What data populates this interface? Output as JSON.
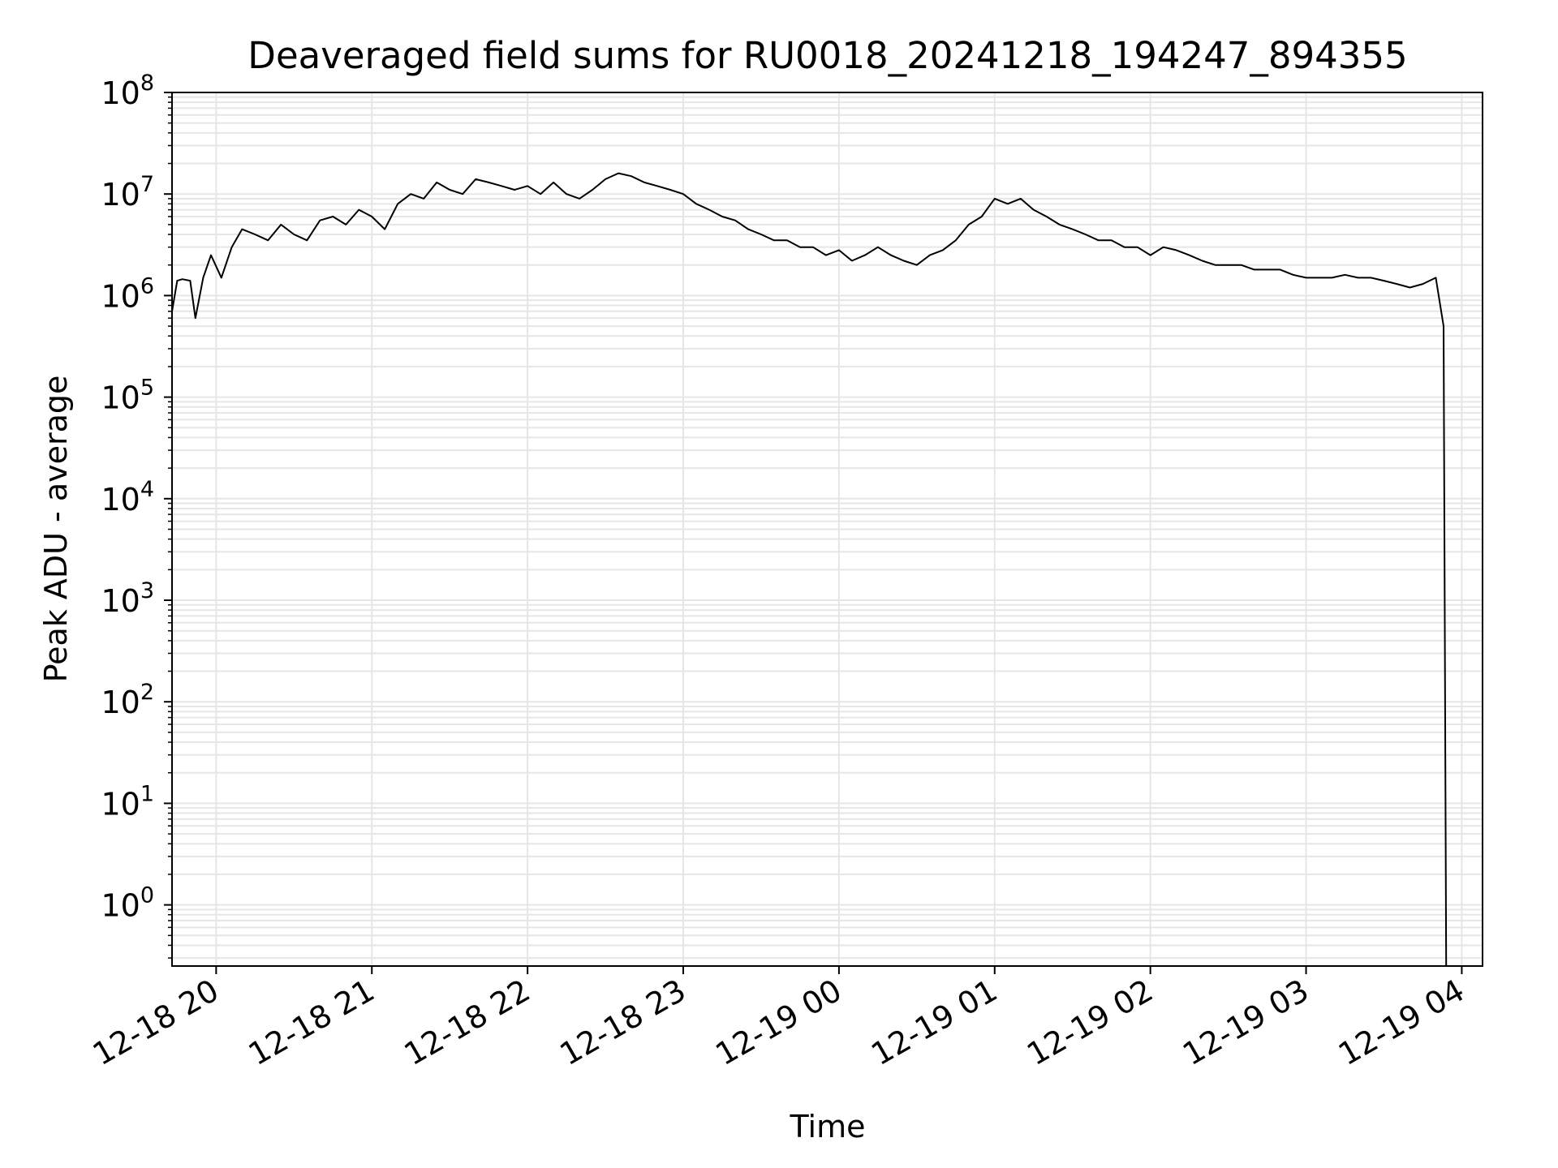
{
  "chart_data": {
    "type": "line",
    "title": "Deaveraged field sums for RU0018_20241218_194247_894355",
    "xlabel": "Time",
    "ylabel": "Peak ADU - average",
    "yscale": "log",
    "xlim": [
      "2024-12-18 19:43",
      "2024-12-19 04:08"
    ],
    "ylim": [
      0.25,
      100000000
    ],
    "x_ticks": [
      {
        "t": "2024-12-18 20:00",
        "label": "12-18 20"
      },
      {
        "t": "2024-12-18 21:00",
        "label": "12-18 21"
      },
      {
        "t": "2024-12-18 22:00",
        "label": "12-18 22"
      },
      {
        "t": "2024-12-18 23:00",
        "label": "12-18 23"
      },
      {
        "t": "2024-12-19 00:00",
        "label": "12-19 00"
      },
      {
        "t": "2024-12-19 01:00",
        "label": "12-19 01"
      },
      {
        "t": "2024-12-19 02:00",
        "label": "12-19 02"
      },
      {
        "t": "2024-12-19 03:00",
        "label": "12-19 03"
      },
      {
        "t": "2024-12-19 04:00",
        "label": "12-19 04"
      }
    ],
    "y_ticks": [
      {
        "value": 1,
        "base": "10",
        "exp": "0"
      },
      {
        "value": 10,
        "base": "10",
        "exp": "1"
      },
      {
        "value": 100,
        "base": "10",
        "exp": "2"
      },
      {
        "value": 1000,
        "base": "10",
        "exp": "3"
      },
      {
        "value": 10000,
        "base": "10",
        "exp": "4"
      },
      {
        "value": 100000,
        "base": "10",
        "exp": "5"
      },
      {
        "value": 1000000,
        "base": "10",
        "exp": "6"
      },
      {
        "value": 10000000,
        "base": "10",
        "exp": "7"
      },
      {
        "value": 100000000,
        "base": "10",
        "exp": "8"
      }
    ],
    "grid": true,
    "line_color": "#000000",
    "grid_color": "#e6e6e6",
    "series": [
      {
        "x": [
          "2024-12-18 19:43",
          "2024-12-18 19:45",
          "2024-12-18 19:47",
          "2024-12-18 19:50",
          "2024-12-18 19:52",
          "2024-12-18 19:55",
          "2024-12-18 19:58",
          "2024-12-18 20:02",
          "2024-12-18 20:06",
          "2024-12-18 20:10",
          "2024-12-18 20:15",
          "2024-12-18 20:20",
          "2024-12-18 20:25",
          "2024-12-18 20:30",
          "2024-12-18 20:35",
          "2024-12-18 20:40",
          "2024-12-18 20:45",
          "2024-12-18 20:50",
          "2024-12-18 20:55",
          "2024-12-18 21:00",
          "2024-12-18 21:05",
          "2024-12-18 21:10",
          "2024-12-18 21:15",
          "2024-12-18 21:20",
          "2024-12-18 21:25",
          "2024-12-18 21:30",
          "2024-12-18 21:35",
          "2024-12-18 21:40",
          "2024-12-18 21:45",
          "2024-12-18 21:50",
          "2024-12-18 21:55",
          "2024-12-18 22:00",
          "2024-12-18 22:05",
          "2024-12-18 22:10",
          "2024-12-18 22:15",
          "2024-12-18 22:20",
          "2024-12-18 22:25",
          "2024-12-18 22:30",
          "2024-12-18 22:35",
          "2024-12-18 22:40",
          "2024-12-18 22:45",
          "2024-12-18 22:50",
          "2024-12-18 22:55",
          "2024-12-18 23:00",
          "2024-12-18 23:05",
          "2024-12-18 23:10",
          "2024-12-18 23:15",
          "2024-12-18 23:20",
          "2024-12-18 23:25",
          "2024-12-18 23:30",
          "2024-12-18 23:35",
          "2024-12-18 23:40",
          "2024-12-18 23:45",
          "2024-12-18 23:50",
          "2024-12-18 23:55",
          "2024-12-19 00:00",
          "2024-12-19 00:05",
          "2024-12-19 00:10",
          "2024-12-19 00:15",
          "2024-12-19 00:20",
          "2024-12-19 00:25",
          "2024-12-19 00:30",
          "2024-12-19 00:35",
          "2024-12-19 00:40",
          "2024-12-19 00:45",
          "2024-12-19 00:50",
          "2024-12-19 00:55",
          "2024-12-19 01:00",
          "2024-12-19 01:05",
          "2024-12-19 01:10",
          "2024-12-19 01:15",
          "2024-12-19 01:20",
          "2024-12-19 01:25",
          "2024-12-19 01:30",
          "2024-12-19 01:35",
          "2024-12-19 01:40",
          "2024-12-19 01:45",
          "2024-12-19 01:50",
          "2024-12-19 01:55",
          "2024-12-19 02:00",
          "2024-12-19 02:05",
          "2024-12-19 02:10",
          "2024-12-19 02:15",
          "2024-12-19 02:20",
          "2024-12-19 02:25",
          "2024-12-19 02:30",
          "2024-12-19 02:35",
          "2024-12-19 02:40",
          "2024-12-19 02:45",
          "2024-12-19 02:50",
          "2024-12-19 02:55",
          "2024-12-19 03:00",
          "2024-12-19 03:05",
          "2024-12-19 03:10",
          "2024-12-19 03:15",
          "2024-12-19 03:20",
          "2024-12-19 03:25",
          "2024-12-19 03:30",
          "2024-12-19 03:35",
          "2024-12-19 03:40",
          "2024-12-19 03:45",
          "2024-12-19 03:50",
          "2024-12-19 03:53",
          "2024-12-19 03:54"
        ],
        "y": [
          700000,
          1400000,
          1450000,
          1400000,
          600000,
          1500000,
          2500000,
          1500000,
          3000000,
          4500000,
          4000000,
          3500000,
          5000000,
          4000000,
          3500000,
          5500000,
          6000000,
          5000000,
          7000000,
          6000000,
          4500000,
          8000000,
          10000000,
          9000000,
          13000000,
          11000000,
          10000000,
          14000000,
          13000000,
          12000000,
          11000000,
          12000000,
          10000000,
          13000000,
          10000000,
          9000000,
          11000000,
          14000000,
          16000000,
          15000000,
          13000000,
          12000000,
          11000000,
          10000000,
          8000000,
          7000000,
          6000000,
          5500000,
          4500000,
          4000000,
          3500000,
          3500000,
          3000000,
          3000000,
          2500000,
          2800000,
          2200000,
          2500000,
          3000000,
          2500000,
          2200000,
          2000000,
          2500000,
          2800000,
          3500000,
          5000000,
          6000000,
          9000000,
          8000000,
          9000000,
          7000000,
          6000000,
          5000000,
          4500000,
          4000000,
          3500000,
          3500000,
          3000000,
          3000000,
          2500000,
          3000000,
          2800000,
          2500000,
          2200000,
          2000000,
          2000000,
          2000000,
          1800000,
          1800000,
          1800000,
          1600000,
          1500000,
          1500000,
          1500000,
          1600000,
          1500000,
          1500000,
          1400000,
          1300000,
          1200000,
          1300000,
          1500000,
          500000,
          0.25
        ]
      }
    ]
  }
}
